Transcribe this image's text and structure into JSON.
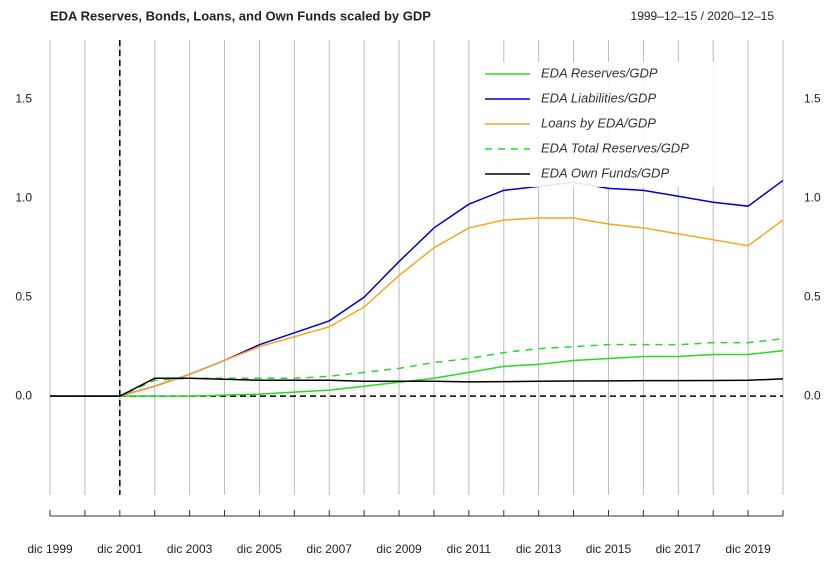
{
  "chart_data": {
    "type": "line",
    "title": "EDA Reserves, Bonds, Loans, and Own Funds scaled by GDP",
    "subtitle": "1999–12–15 / 2020–12–15",
    "categories": [
      "dic 1999",
      null,
      "dic 2001",
      null,
      "dic 2003",
      null,
      "dic 2005",
      null,
      "dic 2007",
      null,
      "dic 2009",
      null,
      "dic 2011",
      null,
      "dic 2013",
      null,
      "dic 2015",
      null,
      "dic 2017",
      null,
      "dic 2019",
      null
    ],
    "series": [
      {
        "name": "EDA Reserves/GDP",
        "color": "#22dd22",
        "dash": false,
        "values": [
          0,
          0,
          0,
          0,
          0,
          0.005,
          0.01,
          0.02,
          0.03,
          0.05,
          0.07,
          0.09,
          0.12,
          0.15,
          0.16,
          0.18,
          0.19,
          0.2,
          0.2,
          0.21,
          0.21,
          0.23
        ]
      },
      {
        "name": "EDA Liabilities/GDP",
        "color": "#0000cc",
        "dash": false,
        "values": [
          0,
          0,
          0,
          0.05,
          0.11,
          0.18,
          0.26,
          0.32,
          0.38,
          0.5,
          0.68,
          0.85,
          0.97,
          1.04,
          1.06,
          1.08,
          1.05,
          1.04,
          1.01,
          0.98,
          0.96,
          1.09
        ]
      },
      {
        "name": "Loans by EDA/GDP",
        "color": "#f5a623",
        "dash": false,
        "values": [
          0,
          0,
          0,
          0.05,
          0.11,
          0.18,
          0.25,
          0.3,
          0.35,
          0.45,
          0.61,
          0.75,
          0.85,
          0.89,
          0.9,
          0.9,
          0.87,
          0.85,
          0.82,
          0.79,
          0.76,
          0.89
        ]
      },
      {
        "name": "EDA Total Reserves/GDP",
        "color": "#22dd22",
        "dash": true,
        "values": [
          0,
          0,
          0,
          0.08,
          0.09,
          0.09,
          0.09,
          0.09,
          0.1,
          0.12,
          0.14,
          0.17,
          0.19,
          0.22,
          0.24,
          0.25,
          0.26,
          0.26,
          0.26,
          0.27,
          0.27,
          0.29
        ]
      },
      {
        "name": "EDA Own Funds/GDP",
        "color": "#000000",
        "dash": false,
        "values": [
          0,
          0,
          0,
          0.09,
          0.09,
          0.085,
          0.08,
          0.08,
          0.08,
          0.075,
          0.075,
          0.075,
          0.072,
          0.073,
          0.075,
          0.076,
          0.077,
          0.078,
          0.078,
          0.079,
          0.08,
          0.087
        ]
      }
    ],
    "ylim": [
      -0.5,
      1.8
    ],
    "yticks": [
      {
        "value": 0,
        "label": "0.0"
      },
      0.5,
      {
        "value": 1,
        "label": "1.0"
      },
      1.5
    ],
    "hline": 0,
    "vline": "dic 2001",
    "grid": "x",
    "legend": "top-right"
  }
}
